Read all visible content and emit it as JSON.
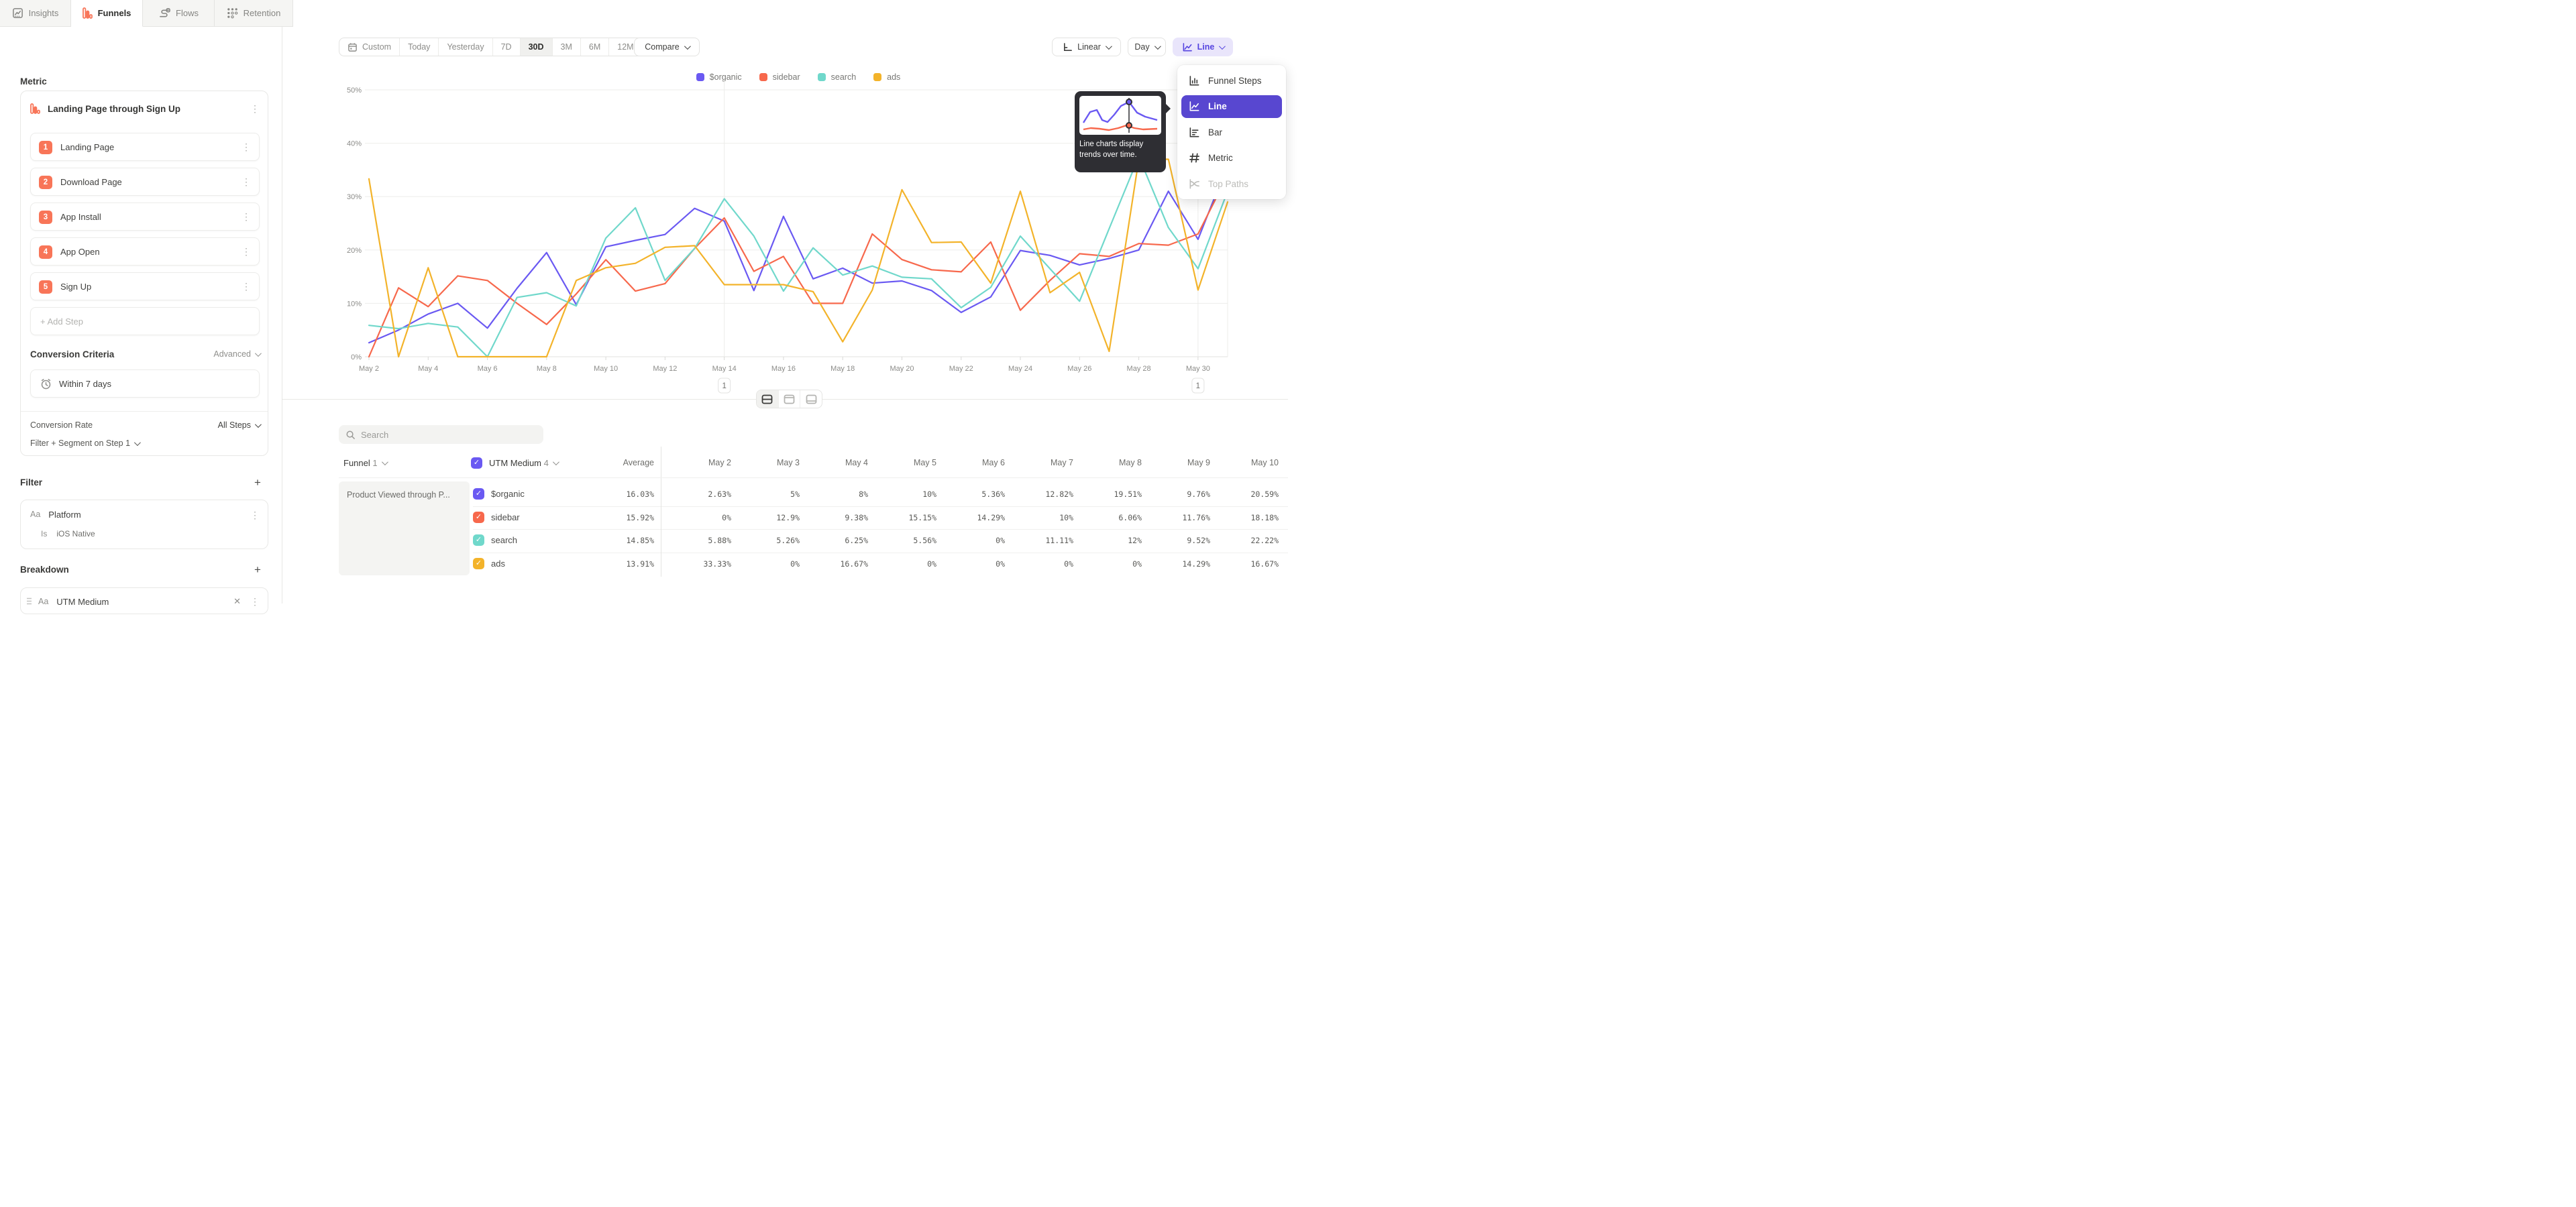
{
  "tabs": [
    {
      "label": "Insights",
      "icon": "insights-icon",
      "active": false
    },
    {
      "label": "Funnels",
      "icon": "funnels-icon",
      "active": true
    },
    {
      "label": "Flows",
      "icon": "flows-icon",
      "active": false
    },
    {
      "label": "Retention",
      "icon": "retention-icon",
      "active": false
    }
  ],
  "sidebar": {
    "metric_heading": "Metric",
    "funnel": {
      "title": "Landing Page through Sign Up",
      "steps": [
        "Landing Page",
        "Download Page",
        "App Install",
        "App Open",
        "Sign Up"
      ],
      "add_step_label": "+  Add Step"
    },
    "conversion_criteria": {
      "heading": "Conversion Criteria",
      "mode": "Advanced",
      "window": "Within 7 days"
    },
    "footer": {
      "conversion_rate_label": "Conversion Rate",
      "conversion_rate_value": "All Steps",
      "filter_segment_label": "Filter + Segment on Step 1"
    },
    "filter": {
      "heading": "Filter",
      "type_icon": "Aa",
      "property": "Platform",
      "operator": "Is",
      "value": "iOS Native"
    },
    "breakdown": {
      "heading": "Breakdown",
      "type_icon": "Aa",
      "property": "UTM Medium"
    }
  },
  "toolbar": {
    "date_ranges": [
      "Custom",
      "Today",
      "Yesterday",
      "7D",
      "30D",
      "3M",
      "6M",
      "12M"
    ],
    "active_range": "30D",
    "compare_label": "Compare",
    "scale_label": "Linear",
    "interval_label": "Day",
    "chart_type_label": "Line"
  },
  "chart_menu": {
    "items": [
      {
        "label": "Funnel Steps",
        "icon": "funnel-steps-icon",
        "state": "default"
      },
      {
        "label": "Line",
        "icon": "line-chart-icon",
        "state": "selected"
      },
      {
        "label": "Bar",
        "icon": "bar-chart-icon",
        "state": "default"
      },
      {
        "label": "Metric",
        "icon": "metric-icon",
        "state": "default"
      },
      {
        "label": "Top Paths",
        "icon": "top-paths-icon",
        "state": "disabled"
      }
    ],
    "tooltip_text": "Line charts display trends over time."
  },
  "chart_data": {
    "type": "line",
    "title": "",
    "xlabel": "",
    "ylabel": "",
    "ylim": [
      0,
      50
    ],
    "y_ticks": [
      "0%",
      "10%",
      "20%",
      "30%",
      "40%",
      "50%"
    ],
    "grid": true,
    "legend_position": "top",
    "x": [
      "May 2",
      "May 3",
      "May 4",
      "May 5",
      "May 6",
      "May 7",
      "May 8",
      "May 9",
      "May 10",
      "May 11",
      "May 12",
      "May 13",
      "May 14",
      "May 15",
      "May 16",
      "May 17",
      "May 18",
      "May 19",
      "May 20",
      "May 21",
      "May 22",
      "May 23",
      "May 24",
      "May 25",
      "May 26",
      "May 27",
      "May 28",
      "May 29",
      "May 30",
      "May 31"
    ],
    "x_tick_every": 2,
    "annotations": [
      {
        "index": 12,
        "label": "1"
      },
      {
        "index": 28,
        "label": "1"
      }
    ],
    "series": [
      {
        "name": "$organic",
        "color": "#6a59f2",
        "values": [
          2.63,
          5,
          8,
          10,
          5.36,
          12.82,
          19.51,
          9.76,
          20.59,
          21.8,
          22.9,
          27.8,
          25.4,
          12.4,
          26.3,
          14.6,
          16.6,
          13.8,
          14.2,
          12.4,
          8.3,
          11.2,
          19.9,
          19.0,
          17.2,
          18.4,
          20.0,
          31.0,
          22.0,
          36.0
        ]
      },
      {
        "name": "sidebar",
        "color": "#f7684c",
        "values": [
          0,
          12.9,
          9.38,
          15.15,
          14.29,
          10,
          6.06,
          11.76,
          18.18,
          12.3,
          13.7,
          20.3,
          26.0,
          16.0,
          18.8,
          10.0,
          10.0,
          23.0,
          18.2,
          16.3,
          15.9,
          21.5,
          8.7,
          14.3,
          19.3,
          18.8,
          21.2,
          20.9,
          23.0,
          34.0
        ]
      },
      {
        "name": "search",
        "color": "#70d8cb",
        "values": [
          5.88,
          5.26,
          6.25,
          5.56,
          0,
          11.11,
          12,
          9.52,
          22.22,
          27.9,
          14.3,
          20.3,
          29.6,
          22.6,
          12.3,
          20.4,
          15.3,
          17.0,
          14.9,
          14.6,
          9.2,
          13.0,
          22.6,
          16.5,
          10.4,
          24.0,
          37.5,
          24.2,
          16.5,
          31.0
        ]
      },
      {
        "name": "ads",
        "color": "#f3b32a",
        "values": [
          33.33,
          0,
          16.67,
          0,
          0,
          0,
          0,
          14.29,
          16.67,
          17.5,
          20.5,
          20.8,
          13.5,
          13.5,
          13.5,
          12.2,
          2.8,
          12.5,
          31.3,
          21.4,
          21.5,
          13.8,
          31.0,
          12.0,
          15.8,
          1.0,
          37.0,
          37.0,
          12.5,
          29.0
        ]
      }
    ]
  },
  "table": {
    "search_placeholder": "Search",
    "group_header": {
      "label": "Funnel",
      "count": "1"
    },
    "breakdown_header": {
      "label": "UTM Medium",
      "count": "4"
    },
    "row_group_label": "Product Viewed through P...",
    "columns": [
      "Average",
      "May 2",
      "May 3",
      "May 4",
      "May 5",
      "May 6",
      "May 7",
      "May 8",
      "May 9",
      "May 10"
    ],
    "rows": [
      {
        "name": "$organic",
        "color": "#6a59f2",
        "average": "16.03%",
        "values": [
          "2.63%",
          "5%",
          "8%",
          "10%",
          "5.36%",
          "12.82%",
          "19.51%",
          "9.76%",
          "20.59%"
        ]
      },
      {
        "name": "sidebar",
        "color": "#f7684c",
        "average": "15.92%",
        "values": [
          "0%",
          "12.9%",
          "9.38%",
          "15.15%",
          "14.29%",
          "10%",
          "6.06%",
          "11.76%",
          "18.18%"
        ]
      },
      {
        "name": "search",
        "color": "#70d8cb",
        "average": "14.85%",
        "values": [
          "5.88%",
          "5.26%",
          "6.25%",
          "5.56%",
          "0%",
          "11.11%",
          "12%",
          "9.52%",
          "22.22%"
        ]
      },
      {
        "name": "ads",
        "color": "#f3b32a",
        "average": "13.91%",
        "values": [
          "33.33%",
          "0%",
          "16.67%",
          "0%",
          "0%",
          "0%",
          "0%",
          "14.29%",
          "16.67%"
        ]
      }
    ]
  }
}
